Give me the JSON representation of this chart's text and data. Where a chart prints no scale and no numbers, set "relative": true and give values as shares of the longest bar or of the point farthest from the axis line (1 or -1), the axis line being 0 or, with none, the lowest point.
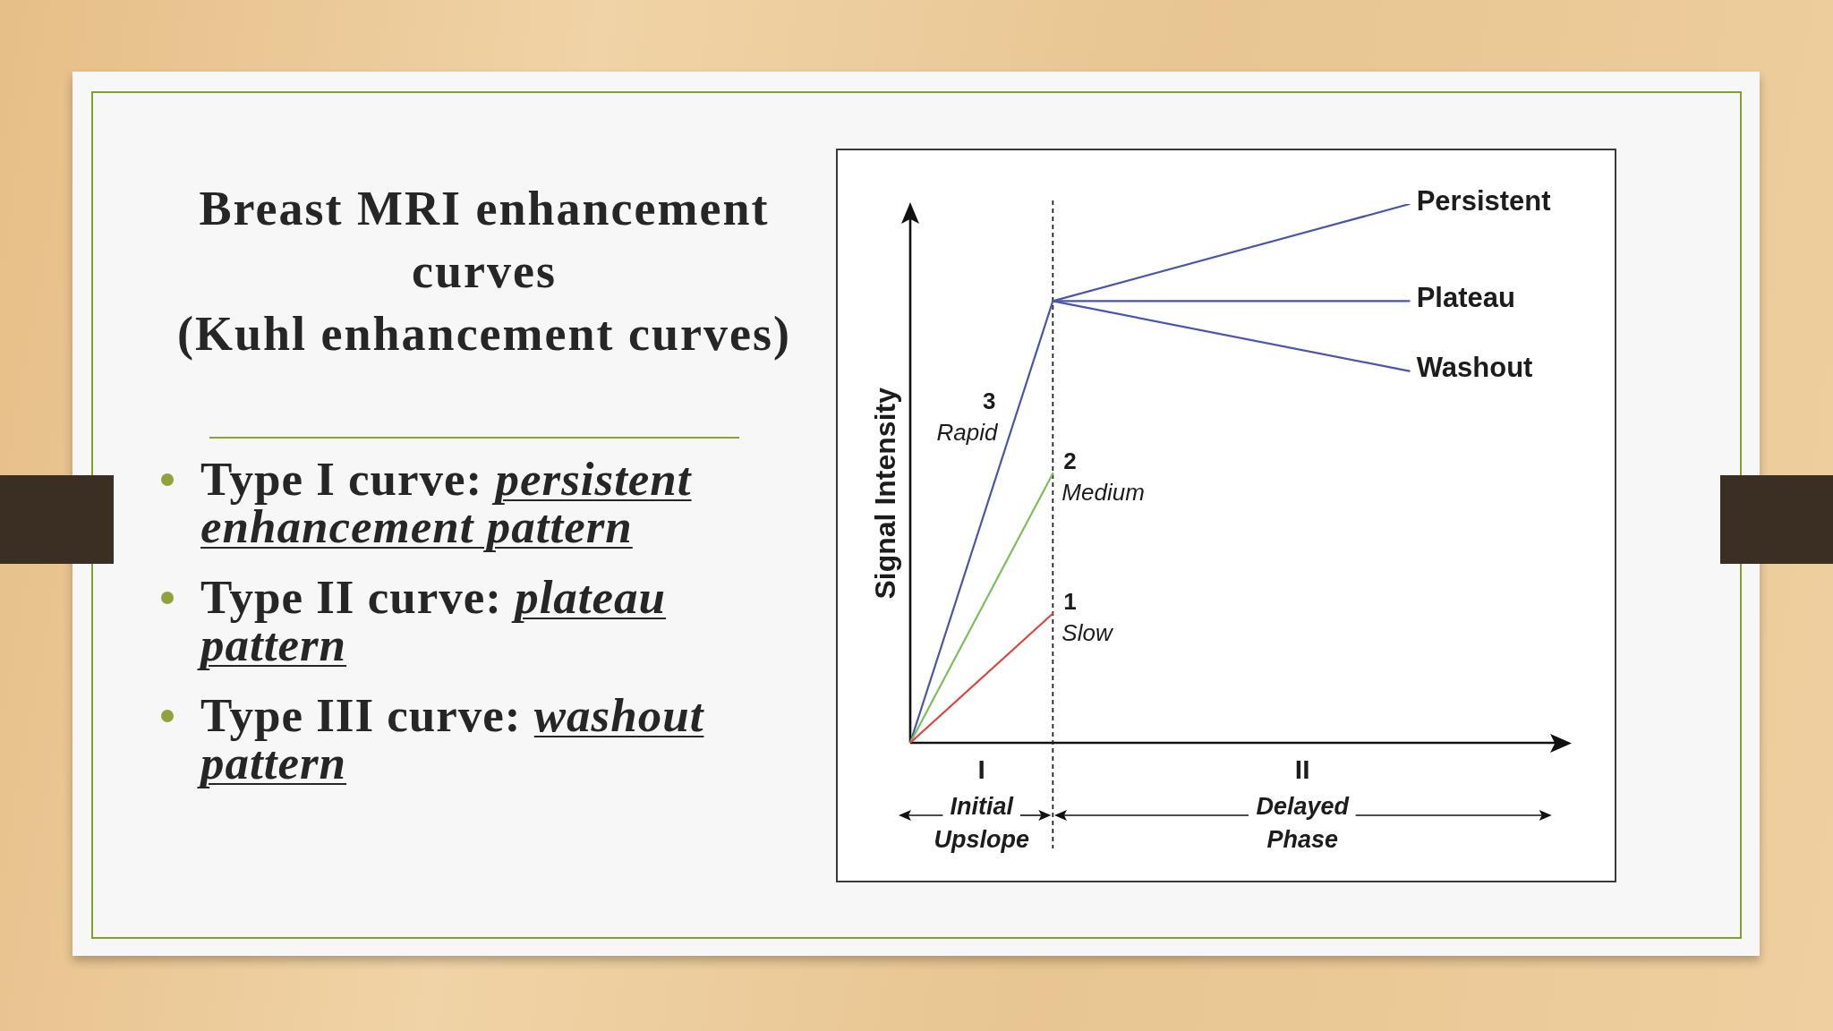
{
  "chart_data": {
    "type": "line",
    "title": "Breast MRI enhancement curves",
    "subtitle": "(Kuhl enhancement curves)",
    "ylabel": "Signal Intensity",
    "relative": true,
    "tick_labels": "x",
    "categories": [
      null,
      null,
      "I",
      null,
      null,
      null,
      null,
      null,
      null,
      null,
      null,
      "II",
      null,
      null,
      null,
      null,
      null,
      null,
      null
    ],
    "series": [
      {
        "name": "1 Slow",
        "color": "#d9473f",
        "values": [
          0,
          null,
          null,
          null,
          0.24,
          null,
          null,
          null,
          null,
          null,
          null,
          null,
          null,
          null,
          null,
          null,
          null,
          null,
          null
        ]
      },
      {
        "name": "2 Medium",
        "color": "#7dbf5c",
        "values": [
          0,
          null,
          null,
          null,
          0.5,
          null,
          null,
          null,
          null,
          null,
          null,
          null,
          null,
          null,
          null,
          null,
          null,
          null,
          null
        ]
      },
      {
        "name": "3 Rapid",
        "color": "#4a56a6",
        "values": [
          0,
          null,
          null,
          null,
          0.82,
          null,
          null,
          null,
          null,
          null,
          null,
          null,
          null,
          null,
          null,
          null,
          null,
          null,
          null
        ]
      },
      {
        "name": "Persistent",
        "color": "#4a56a6",
        "values": [
          null,
          null,
          null,
          null,
          0.82,
          null,
          null,
          null,
          null,
          null,
          null,
          null,
          null,
          null,
          1,
          null,
          null,
          null,
          null
        ]
      },
      {
        "name": "Plateau",
        "color": "#4a56a6",
        "values": [
          null,
          null,
          null,
          null,
          0.82,
          null,
          null,
          null,
          null,
          null,
          null,
          null,
          null,
          null,
          0.82,
          null,
          null,
          null,
          null
        ]
      },
      {
        "name": "Washout",
        "color": "#4a56a6",
        "values": [
          null,
          null,
          null,
          null,
          0.82,
          null,
          null,
          null,
          null,
          null,
          null,
          null,
          null,
          null,
          0.69,
          null,
          null,
          null,
          null
        ]
      }
    ],
    "annotations": [
      "Type I curve: persistent enhancement pattern",
      "Type II curve: plateau pattern",
      "Type III curve: washout pattern",
      "Initial Upslope",
      "Delayed Phase"
    ]
  }
}
